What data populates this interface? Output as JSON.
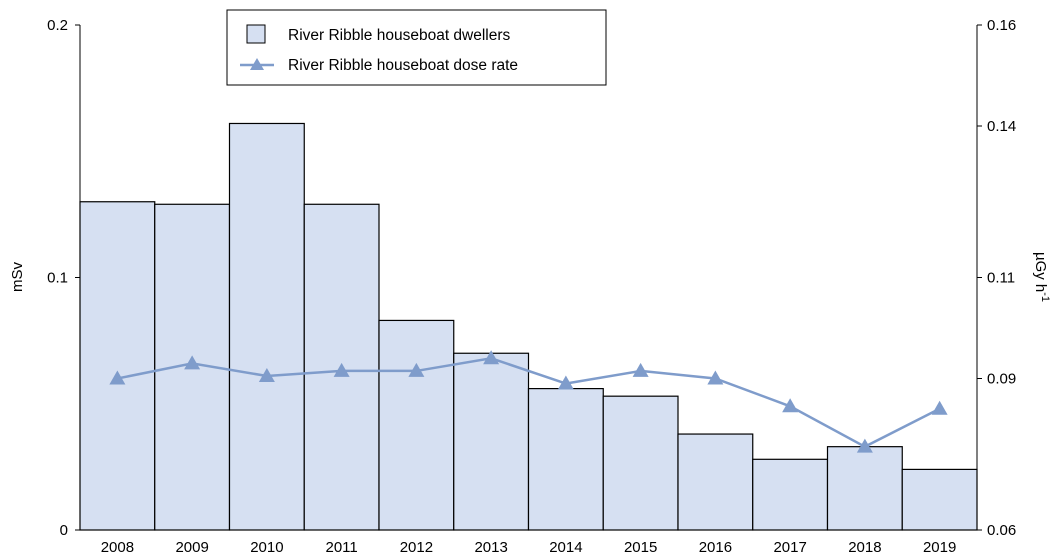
{
  "chart_data": {
    "type": "bar",
    "categories": [
      "2008",
      "2009",
      "2010",
      "2011",
      "2012",
      "2013",
      "2014",
      "2015",
      "2016",
      "2017",
      "2018",
      "2019"
    ],
    "series": [
      {
        "name": "River Ribble houseboat dwellers",
        "kind": "bar",
        "axis": "left",
        "values": [
          0.13,
          0.129,
          0.161,
          0.129,
          0.083,
          0.07,
          0.056,
          0.053,
          0.038,
          0.028,
          0.033,
          0.024
        ],
        "color": "#d6e0f2",
        "edge_color": "#000000"
      },
      {
        "name": "River Ribble houseboat dose rate",
        "kind": "line",
        "marker": "triangle",
        "axis": "right",
        "values": [
          0.09,
          0.093,
          0.0905,
          0.0915,
          0.0915,
          0.094,
          0.089,
          0.0915,
          0.09,
          0.0845,
          0.0765,
          0.084
        ],
        "color": "#7f9ccb"
      }
    ],
    "xlabel": "",
    "ylabel": "mSv",
    "y2label": "µGy h",
    "y2label_superscript": "-1",
    "ylim": [
      0,
      0.2
    ],
    "y2lim": [
      0.06,
      0.16
    ],
    "yticks": [
      "0",
      "0.1",
      "0.2"
    ],
    "y2ticks": [
      "0.06",
      "0.09",
      "0.11",
      "0.14",
      "0.16"
    ],
    "legend_position": "top-center",
    "grid": false
  }
}
